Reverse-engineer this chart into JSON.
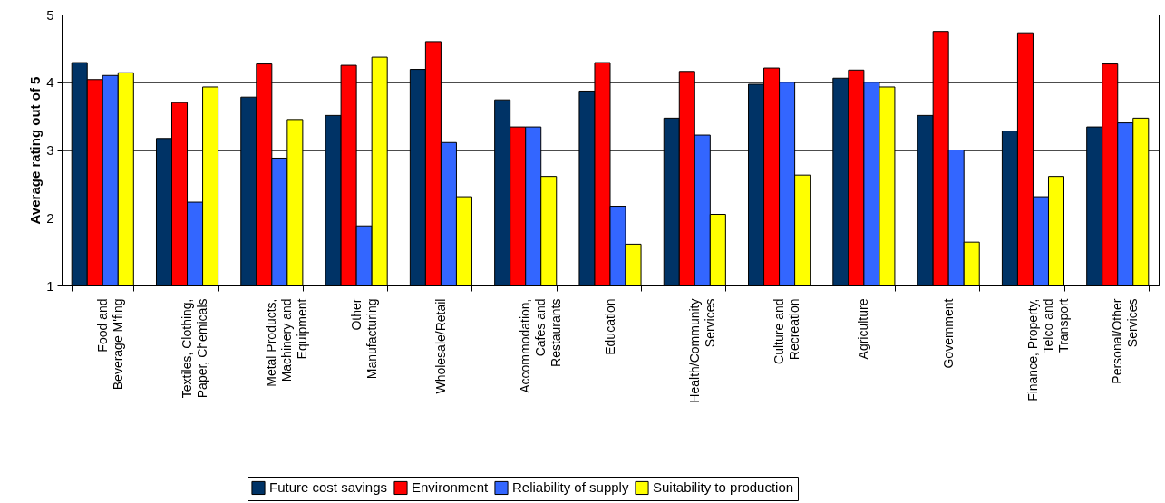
{
  "chart_data": {
    "type": "bar",
    "ylabel": "Average rating out of 5",
    "categories": [
      "Food and\nBeverage M'fing",
      "Textiles, Clothing,\nPaper, Chemicals",
      "Metal Products,\nMachinery and\nEquipment",
      "Other\nManufacturing",
      "Wholesale/Retail",
      "Accommodation,\nCafes and\nRestaurants",
      "Education",
      "Health/Community\nServices",
      "Culture and\nRecreation",
      "Agriculture",
      "Government",
      "Finance, Property,\nTelco and\nTransport",
      "Personal/Other\nServices"
    ],
    "series": [
      {
        "name": "Future cost savings",
        "color": "#003366",
        "values": [
          4.29,
          3.17,
          3.78,
          3.51,
          4.19,
          3.74,
          3.87,
          3.47,
          3.97,
          4.06,
          3.51,
          3.28,
          3.34
        ]
      },
      {
        "name": "Environment",
        "color": "#ff0000",
        "values": [
          4.04,
          3.7,
          4.27,
          4.25,
          4.6,
          3.34,
          4.29,
          4.16,
          4.21,
          4.18,
          4.75,
          4.73,
          4.27
        ]
      },
      {
        "name": "Reliability of supply",
        "color": "#3366ff",
        "values": [
          4.1,
          2.23,
          2.88,
          1.88,
          3.11,
          3.34,
          2.17,
          3.22,
          4.0,
          4.0,
          3.0,
          2.31,
          3.4
        ]
      },
      {
        "name": "Suitability to production",
        "color": "#ffff00",
        "values": [
          4.14,
          3.93,
          3.45,
          4.37,
          2.31,
          2.61,
          1.61,
          2.05,
          2.63,
          3.93,
          1.64,
          2.61,
          3.47
        ]
      }
    ],
    "ylim": [
      1,
      5
    ],
    "yticks": [
      1,
      2,
      3,
      4,
      5
    ],
    "grid": "y",
    "legend": "bottom"
  }
}
